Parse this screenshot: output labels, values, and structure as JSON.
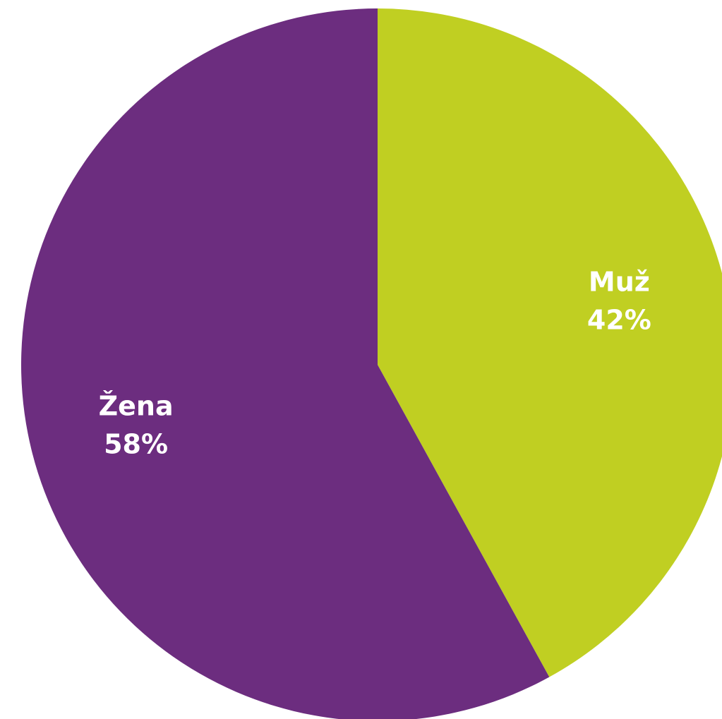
{
  "chart_data": {
    "type": "pie",
    "categories": [
      "Muž",
      "Žena"
    ],
    "values": [
      42,
      58
    ],
    "value_labels": [
      "42%",
      "58%"
    ],
    "colors": [
      "#c0cf22",
      "#6c2d7f"
    ]
  }
}
